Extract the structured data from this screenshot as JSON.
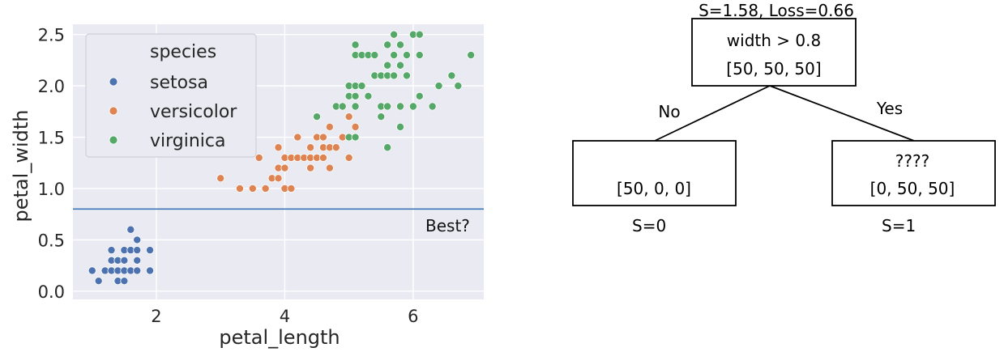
{
  "chart_data": {
    "type": "scatter",
    "title": "",
    "xlabel": "petal_length",
    "ylabel": "petal_width",
    "xlim": [
      0.7,
      7.1
    ],
    "ylim": [
      -0.08,
      2.6
    ],
    "xticks": [
      2,
      4,
      6
    ],
    "yticks": [
      0.0,
      0.5,
      1.0,
      1.5,
      2.0,
      2.5
    ],
    "grid": true,
    "legend_placement": "top-left",
    "legend_title": "species",
    "series": [
      {
        "name": "setosa",
        "color": "#4c72b0",
        "points": [
          [
            1.0,
            0.2
          ],
          [
            1.1,
            0.1
          ],
          [
            1.2,
            0.2
          ],
          [
            1.3,
            0.2
          ],
          [
            1.3,
            0.3
          ],
          [
            1.3,
            0.4
          ],
          [
            1.4,
            0.1
          ],
          [
            1.4,
            0.2
          ],
          [
            1.4,
            0.3
          ],
          [
            1.5,
            0.1
          ],
          [
            1.5,
            0.2
          ],
          [
            1.5,
            0.3
          ],
          [
            1.5,
            0.4
          ],
          [
            1.6,
            0.2
          ],
          [
            1.6,
            0.4
          ],
          [
            1.6,
            0.6
          ],
          [
            1.7,
            0.2
          ],
          [
            1.7,
            0.3
          ],
          [
            1.7,
            0.4
          ],
          [
            1.7,
            0.5
          ],
          [
            1.9,
            0.2
          ],
          [
            1.9,
            0.4
          ]
        ]
      },
      {
        "name": "versicolor",
        "color": "#dd8452",
        "points": [
          [
            3.0,
            1.1
          ],
          [
            3.3,
            1.0
          ],
          [
            3.5,
            1.0
          ],
          [
            3.6,
            1.3
          ],
          [
            3.7,
            1.0
          ],
          [
            3.8,
            1.1
          ],
          [
            3.9,
            1.1
          ],
          [
            3.9,
            1.2
          ],
          [
            3.9,
            1.4
          ],
          [
            4.0,
            1.0
          ],
          [
            4.0,
            1.2
          ],
          [
            4.0,
            1.3
          ],
          [
            4.1,
            1.0
          ],
          [
            4.1,
            1.3
          ],
          [
            4.2,
            1.3
          ],
          [
            4.2,
            1.5
          ],
          [
            4.3,
            1.3
          ],
          [
            4.4,
            1.2
          ],
          [
            4.4,
            1.3
          ],
          [
            4.4,
            1.4
          ],
          [
            4.5,
            1.3
          ],
          [
            4.5,
            1.5
          ],
          [
            4.5,
            1.7
          ],
          [
            4.6,
            1.3
          ],
          [
            4.6,
            1.4
          ],
          [
            4.6,
            1.5
          ],
          [
            4.7,
            1.2
          ],
          [
            4.7,
            1.4
          ],
          [
            4.7,
            1.6
          ],
          [
            4.8,
            1.4
          ],
          [
            4.8,
            1.8
          ],
          [
            4.9,
            1.5
          ],
          [
            5.0,
            1.7
          ],
          [
            5.1,
            1.6
          ],
          [
            5.0,
            1.3
          ]
        ]
      },
      {
        "name": "virginica",
        "color": "#55a868",
        "points": [
          [
            4.5,
            1.7
          ],
          [
            4.8,
            1.8
          ],
          [
            4.9,
            1.8
          ],
          [
            5.0,
            1.5
          ],
          [
            5.0,
            2.0
          ],
          [
            5.0,
            1.9
          ],
          [
            5.1,
            1.5
          ],
          [
            5.1,
            1.8
          ],
          [
            5.1,
            1.9
          ],
          [
            5.1,
            2.0
          ],
          [
            5.1,
            2.3
          ],
          [
            5.1,
            2.4
          ],
          [
            5.2,
            2.0
          ],
          [
            5.2,
            2.3
          ],
          [
            5.3,
            1.9
          ],
          [
            5.3,
            2.3
          ],
          [
            5.4,
            2.1
          ],
          [
            5.4,
            2.3
          ],
          [
            5.5,
            1.8
          ],
          [
            5.5,
            2.1
          ],
          [
            5.5,
            1.7
          ],
          [
            5.6,
            1.4
          ],
          [
            5.6,
            1.8
          ],
          [
            5.6,
            2.1
          ],
          [
            5.6,
            2.2
          ],
          [
            5.6,
            2.4
          ],
          [
            5.7,
            2.1
          ],
          [
            5.7,
            2.3
          ],
          [
            5.7,
            2.5
          ],
          [
            5.8,
            1.6
          ],
          [
            5.8,
            1.8
          ],
          [
            5.8,
            2.2
          ],
          [
            5.8,
            2.4
          ],
          [
            5.9,
            2.1
          ],
          [
            5.9,
            2.3
          ],
          [
            6.0,
            1.8
          ],
          [
            6.0,
            2.5
          ],
          [
            6.1,
            1.9
          ],
          [
            6.1,
            2.3
          ],
          [
            6.1,
            2.5
          ],
          [
            6.3,
            1.8
          ],
          [
            6.4,
            2.0
          ],
          [
            6.6,
            2.1
          ],
          [
            6.7,
            2.0
          ],
          [
            6.9,
            2.3
          ]
        ]
      }
    ],
    "threshold_line": {
      "y": 0.8,
      "color": "#3a76b5"
    },
    "annotation": "Best?"
  },
  "tree": {
    "root_header": "S=1.58, Loss=0.66",
    "root_line1": "width > 0.8",
    "root_line2": "[50, 50, 50]",
    "edge_left_label": "No",
    "edge_right_label": "Yes",
    "left_line2": "[50, 0, 0]",
    "left_footer": "S=0",
    "right_line1": "????",
    "right_line2": "[0, 50, 50]",
    "right_footer": "S=1"
  }
}
